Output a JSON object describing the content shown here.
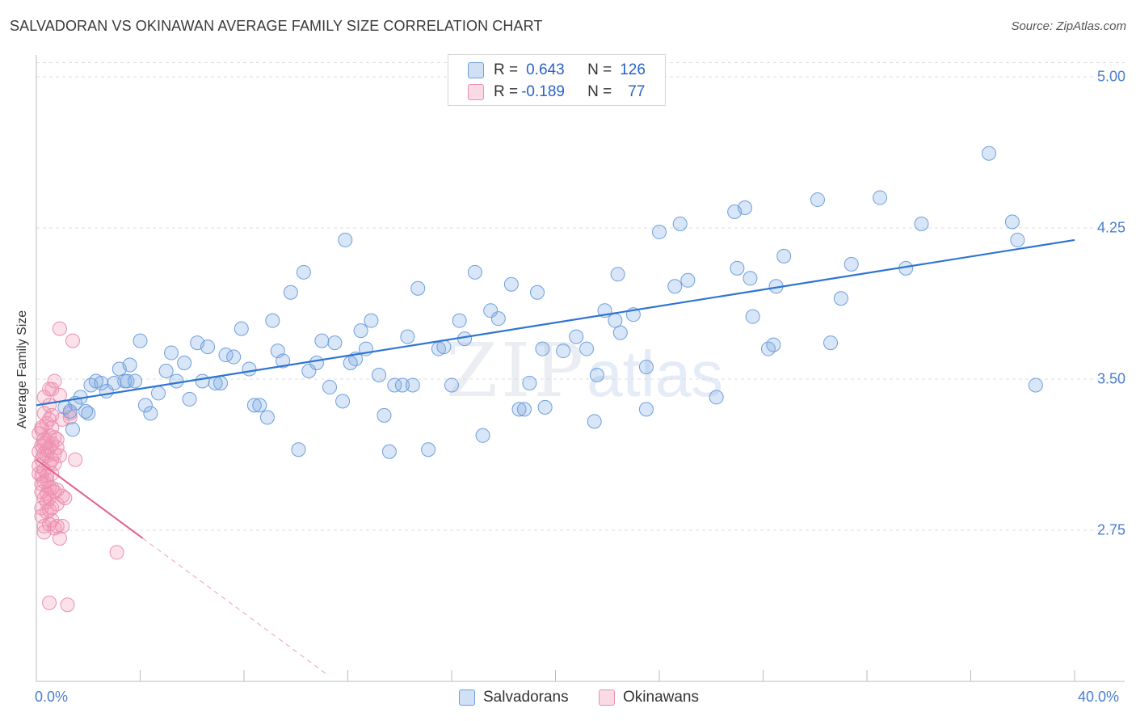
{
  "header": {
    "title": "SALVADORAN VS OKINAWAN AVERAGE FAMILY SIZE CORRELATION CHART",
    "source": "Source: ZipAtlas.com"
  },
  "watermark": {
    "zip": "ZIP",
    "atlas": "atlas"
  },
  "colors": {
    "blue": "#2f74d0",
    "blue_fill": "rgba(120,165,225,0.28)",
    "blue_stroke": "#6e9fdc",
    "pink": "#e0608e",
    "pink_fill": "rgba(240,150,180,0.28)",
    "pink_stroke": "#ec8fae",
    "tick_text": "#4a7fcf",
    "grid": "#dcdcdc"
  },
  "legend_top": {
    "rows": [
      {
        "r_label": "R = ",
        "r_value": "0.643",
        "n_label": "N = ",
        "n_value": "126"
      },
      {
        "r_label": "R = ",
        "r_value": "-0.189",
        "n_label": "N = ",
        "n_value": "77"
      }
    ]
  },
  "legend_bottom": {
    "items": [
      "Salvadorans",
      "Okinawans"
    ]
  },
  "chart_data": {
    "type": "scatter",
    "title": "SALVADORAN VS OKINAWAN AVERAGE FAMILY SIZE CORRELATION CHART",
    "xlabel": "",
    "ylabel": "Average Family Size",
    "xlim": [
      0,
      40
    ],
    "ylim": [
      2.0,
      5.08
    ],
    "x_tick_labels": [
      "0.0%",
      "40.0%"
    ],
    "y_ticks": [
      2.75,
      3.5,
      4.25,
      5.0
    ],
    "y_tick_labels": [
      "2.75",
      "3.50",
      "4.25",
      "5.00"
    ],
    "x_minor_ticks": [
      0,
      4,
      8,
      12,
      16,
      20,
      24,
      28,
      32,
      36,
      40
    ],
    "grid": true,
    "series": [
      {
        "name": "Salvadorans",
        "r": 0.643,
        "n": 126,
        "trend": {
          "x0": 0,
          "y0": 3.37,
          "x1": 40,
          "y1": 4.19
        },
        "points": [
          [
            1.1,
            3.36
          ],
          [
            1.3,
            3.34
          ],
          [
            1.5,
            3.38
          ],
          [
            1.7,
            3.41
          ],
          [
            1.9,
            3.34
          ],
          [
            2.1,
            3.47
          ],
          [
            2.3,
            3.49
          ],
          [
            2.5,
            3.48
          ],
          [
            2.7,
            3.44
          ],
          [
            3.0,
            3.48
          ],
          [
            3.2,
            3.55
          ],
          [
            3.4,
            3.49
          ],
          [
            3.6,
            3.57
          ],
          [
            3.8,
            3.49
          ],
          [
            4.0,
            3.69
          ],
          [
            4.2,
            3.37
          ],
          [
            4.4,
            3.33
          ],
          [
            4.7,
            3.43
          ],
          [
            5.0,
            3.54
          ],
          [
            5.2,
            3.63
          ],
          [
            5.4,
            3.49
          ],
          [
            5.7,
            3.58
          ],
          [
            5.9,
            3.4
          ],
          [
            6.2,
            3.68
          ],
          [
            6.4,
            3.49
          ],
          [
            6.6,
            3.66
          ],
          [
            6.9,
            3.48
          ],
          [
            7.1,
            3.48
          ],
          [
            7.3,
            3.62
          ],
          [
            7.6,
            3.61
          ],
          [
            7.9,
            3.75
          ],
          [
            8.2,
            3.55
          ],
          [
            8.4,
            3.37
          ],
          [
            8.6,
            3.37
          ],
          [
            8.9,
            3.31
          ],
          [
            9.1,
            3.79
          ],
          [
            9.3,
            3.64
          ],
          [
            9.5,
            3.59
          ],
          [
            9.8,
            3.93
          ],
          [
            10.1,
            3.15
          ],
          [
            10.3,
            4.03
          ],
          [
            10.5,
            3.54
          ],
          [
            10.8,
            3.58
          ],
          [
            11.0,
            3.69
          ],
          [
            11.3,
            3.46
          ],
          [
            11.5,
            3.68
          ],
          [
            11.8,
            3.39
          ],
          [
            11.9,
            4.19
          ],
          [
            12.1,
            3.58
          ],
          [
            12.3,
            3.6
          ],
          [
            12.5,
            3.74
          ],
          [
            12.7,
            3.65
          ],
          [
            12.9,
            3.79
          ],
          [
            13.2,
            3.52
          ],
          [
            13.4,
            3.32
          ],
          [
            13.6,
            3.14
          ],
          [
            13.8,
            3.47
          ],
          [
            14.1,
            3.47
          ],
          [
            14.3,
            3.71
          ],
          [
            14.5,
            3.47
          ],
          [
            14.7,
            3.95
          ],
          [
            15.1,
            3.15
          ],
          [
            15.5,
            3.65
          ],
          [
            15.7,
            3.66
          ],
          [
            16.0,
            3.47
          ],
          [
            16.3,
            3.79
          ],
          [
            16.5,
            3.7
          ],
          [
            16.9,
            4.03
          ],
          [
            17.2,
            3.22
          ],
          [
            17.5,
            3.84
          ],
          [
            17.8,
            3.8
          ],
          [
            18.3,
            3.97
          ],
          [
            18.6,
            3.35
          ],
          [
            18.8,
            3.35
          ],
          [
            19.0,
            3.48
          ],
          [
            19.3,
            3.93
          ],
          [
            19.5,
            3.65
          ],
          [
            19.6,
            3.36
          ],
          [
            20.3,
            3.64
          ],
          [
            20.8,
            3.71
          ],
          [
            21.2,
            3.65
          ],
          [
            21.5,
            3.29
          ],
          [
            21.6,
            3.52
          ],
          [
            21.9,
            3.84
          ],
          [
            22.3,
            3.79
          ],
          [
            22.4,
            4.02
          ],
          [
            22.5,
            3.73
          ],
          [
            23.0,
            3.82
          ],
          [
            23.5,
            3.35
          ],
          [
            23.5,
            3.56
          ],
          [
            24.0,
            4.23
          ],
          [
            24.6,
            3.96
          ],
          [
            24.8,
            4.27
          ],
          [
            25.1,
            3.99
          ],
          [
            26.2,
            3.41
          ],
          [
            26.9,
            4.33
          ],
          [
            27.3,
            4.35
          ],
          [
            27.0,
            4.05
          ],
          [
            27.5,
            4.0
          ],
          [
            27.6,
            3.81
          ],
          [
            28.2,
            3.65
          ],
          [
            28.4,
            3.67
          ],
          [
            28.5,
            3.96
          ],
          [
            28.8,
            4.11
          ],
          [
            30.1,
            4.39
          ],
          [
            30.6,
            3.68
          ],
          [
            31.0,
            3.9
          ],
          [
            31.4,
            4.07
          ],
          [
            32.5,
            4.4
          ],
          [
            33.5,
            4.05
          ],
          [
            34.1,
            4.27
          ],
          [
            36.7,
            4.62
          ],
          [
            37.6,
            4.28
          ],
          [
            37.8,
            4.19
          ],
          [
            38.5,
            3.47
          ],
          [
            1.4,
            3.25
          ],
          [
            2.0,
            3.33
          ],
          [
            3.5,
            3.49
          ]
        ]
      },
      {
        "name": "Okinawans",
        "r": -0.189,
        "n": 77,
        "trend": {
          "x0": 0,
          "y0": 3.1,
          "x1": 4.1,
          "y1": 2.71,
          "dash_to_x": 11.2
        },
        "points": [
          [
            0.1,
            3.23
          ],
          [
            0.1,
            3.14
          ],
          [
            0.1,
            3.07
          ],
          [
            0.1,
            3.03
          ],
          [
            0.2,
            3.25
          ],
          [
            0.2,
            3.17
          ],
          [
            0.2,
            3.1
          ],
          [
            0.2,
            3.02
          ],
          [
            0.2,
            2.94
          ],
          [
            0.2,
            2.86
          ],
          [
            0.2,
            2.82
          ],
          [
            0.3,
            3.41
          ],
          [
            0.3,
            3.33
          ],
          [
            0.3,
            3.2
          ],
          [
            0.3,
            3.13
          ],
          [
            0.3,
            3.05
          ],
          [
            0.3,
            2.99
          ],
          [
            0.3,
            2.91
          ],
          [
            0.3,
            2.77
          ],
          [
            0.3,
            2.74
          ],
          [
            0.4,
            3.28
          ],
          [
            0.4,
            3.19
          ],
          [
            0.4,
            3.15
          ],
          [
            0.4,
            3.12
          ],
          [
            0.4,
            3.02
          ],
          [
            0.4,
            2.89
          ],
          [
            0.4,
            2.84
          ],
          [
            0.5,
            3.45
          ],
          [
            0.5,
            3.37
          ],
          [
            0.5,
            3.3
          ],
          [
            0.5,
            3.22
          ],
          [
            0.5,
            3.16
          ],
          [
            0.5,
            3.08
          ],
          [
            0.5,
            2.96
          ],
          [
            0.5,
            2.91
          ],
          [
            0.5,
            2.78
          ],
          [
            0.5,
            2.39
          ],
          [
            0.6,
            3.45
          ],
          [
            0.6,
            3.32
          ],
          [
            0.6,
            3.26
          ],
          [
            0.6,
            3.18
          ],
          [
            0.6,
            3.1
          ],
          [
            0.6,
            2.96
          ],
          [
            0.6,
            2.86
          ],
          [
            0.6,
            2.8
          ],
          [
            0.7,
            3.49
          ],
          [
            0.7,
            3.21
          ],
          [
            0.7,
            3.13
          ],
          [
            0.7,
            2.94
          ],
          [
            0.7,
            2.76
          ],
          [
            0.8,
            3.16
          ],
          [
            0.8,
            2.95
          ],
          [
            0.8,
            2.88
          ],
          [
            0.8,
            2.77
          ],
          [
            0.9,
            3.42
          ],
          [
            0.9,
            3.12
          ],
          [
            0.9,
            2.71
          ],
          [
            0.9,
            3.75
          ],
          [
            1.0,
            3.3
          ],
          [
            1.0,
            2.92
          ],
          [
            1.0,
            2.77
          ],
          [
            1.2,
            2.38
          ],
          [
            1.3,
            3.31
          ],
          [
            1.3,
            3.33
          ],
          [
            1.4,
            3.69
          ],
          [
            1.5,
            3.1
          ],
          [
            3.1,
            2.64
          ],
          [
            0.2,
            3.26
          ],
          [
            0.3,
            3.18
          ],
          [
            0.4,
            3.0
          ],
          [
            0.4,
            2.93
          ],
          [
            0.5,
            2.85
          ],
          [
            0.6,
            3.03
          ],
          [
            0.7,
            3.08
          ],
          [
            0.8,
            3.2
          ],
          [
            1.1,
            2.91
          ],
          [
            0.2,
            2.98
          ]
        ]
      }
    ]
  }
}
